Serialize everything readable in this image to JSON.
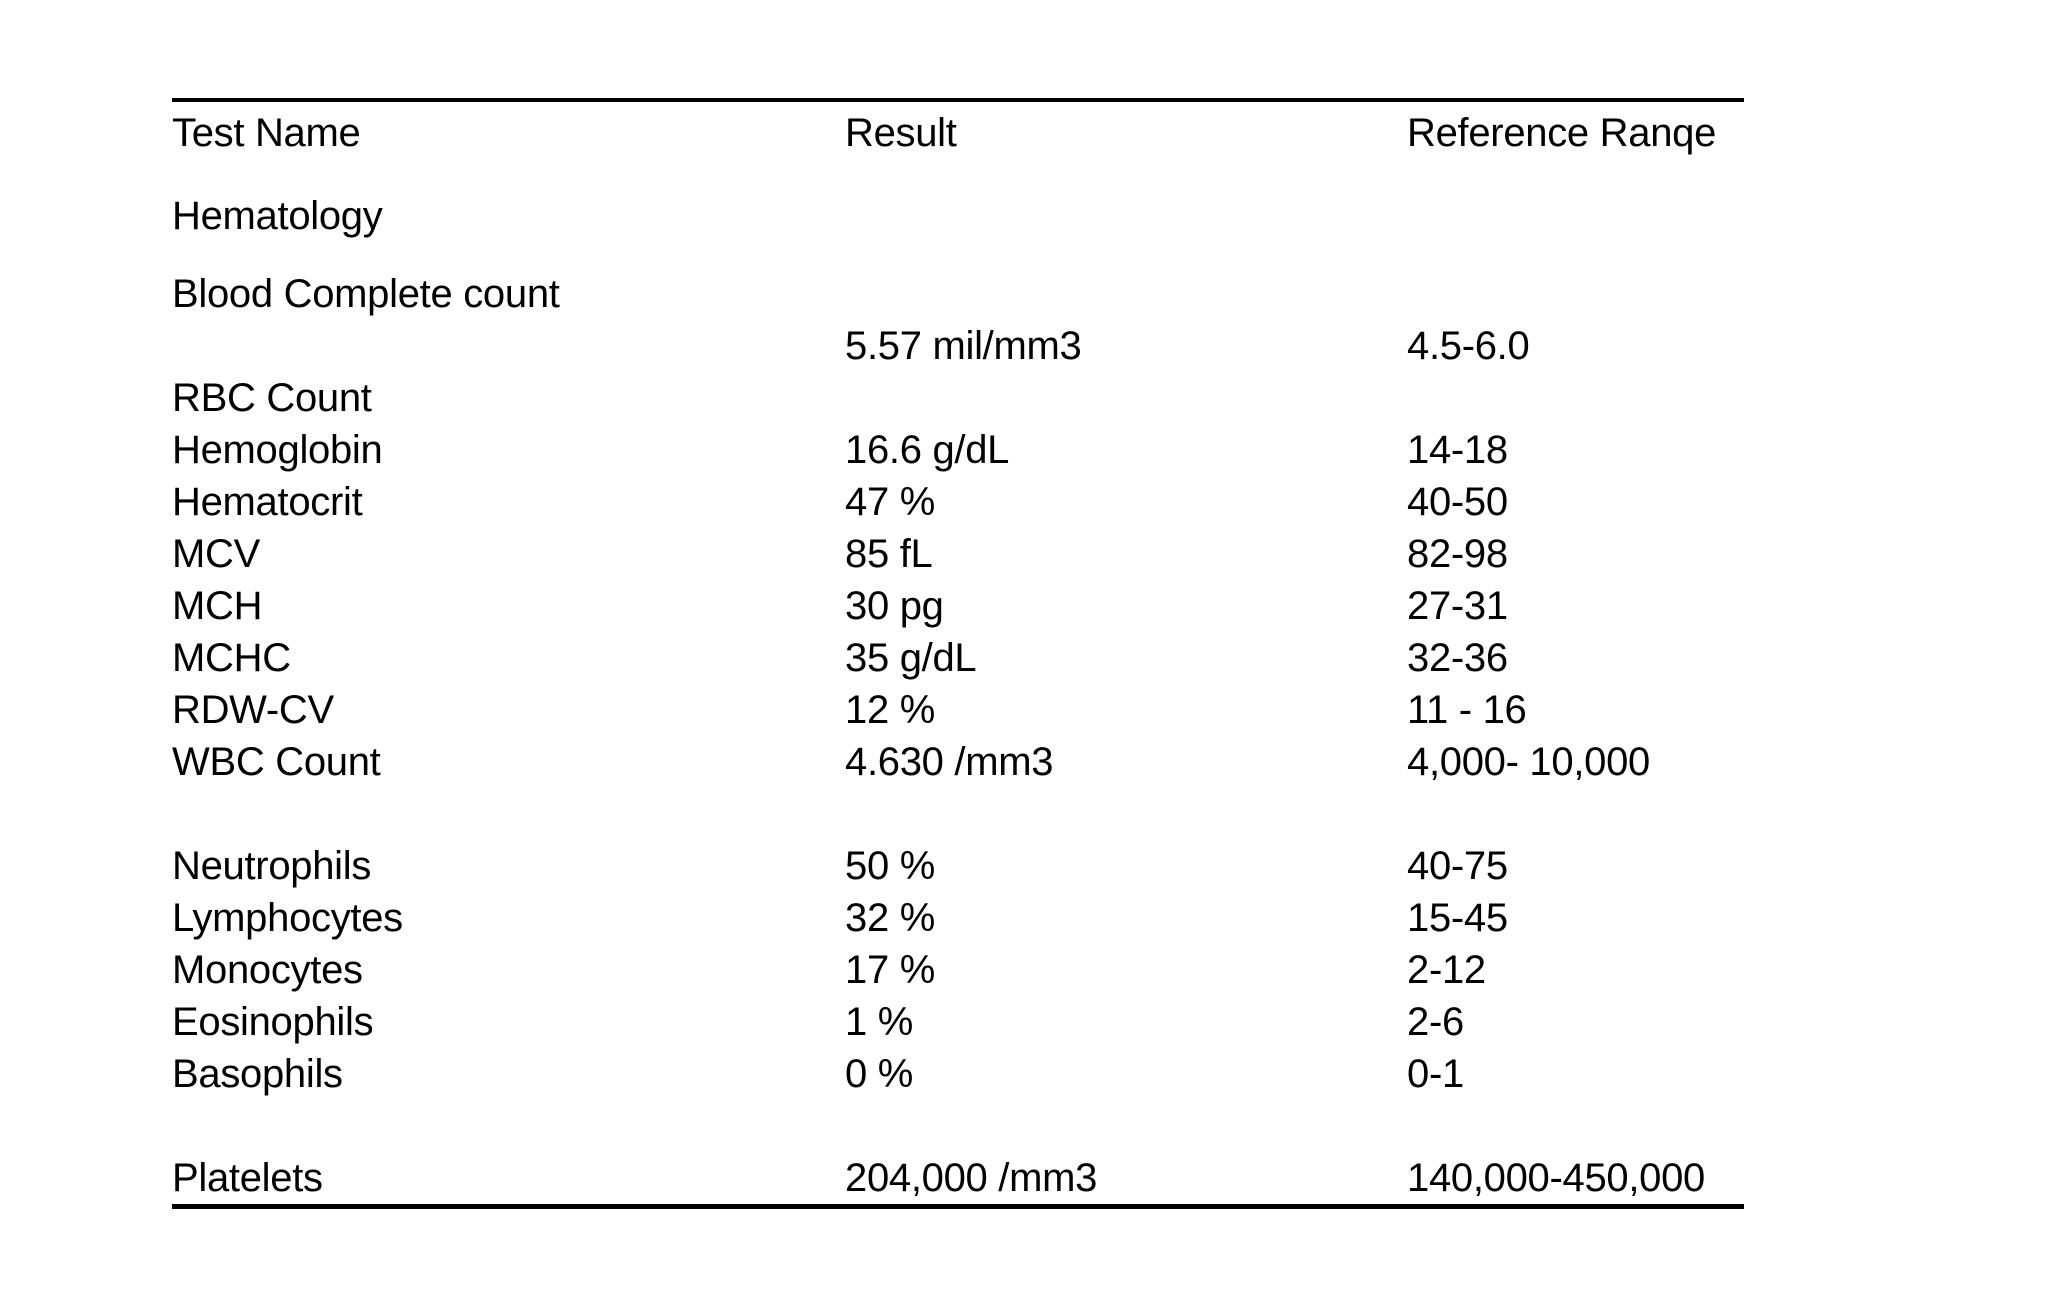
{
  "document": {
    "background_color": "#ffffff",
    "text_color": "#000000",
    "rule_color": "#000000"
  },
  "table": {
    "columns": [
      "Test Name",
      "Result",
      "Reference Ranqe"
    ],
    "section_titles": [
      "Hematology",
      "Blood Complete count"
    ],
    "rows": [
      {
        "type": "group",
        "name": "Hematology",
        "result": "",
        "ref": ""
      },
      {
        "type": "group",
        "name": "Blood Complete count",
        "result": "",
        "ref": ""
      },
      {
        "type": "data",
        "name": "",
        "result": "5.57 mil/mm3",
        "ref": "4.5-6.0"
      },
      {
        "type": "data",
        "name": "RBC Count",
        "result": "",
        "ref": ""
      },
      {
        "type": "data",
        "name": "Hemoglobin",
        "result": "16.6 g/dL",
        "ref": "14-18"
      },
      {
        "type": "data",
        "name": "Hematocrit",
        "result": "47 %",
        "ref": "40-50"
      },
      {
        "type": "data",
        "name": "MCV",
        "result": "85 fL",
        "ref": "82-98"
      },
      {
        "type": "data",
        "name": "MCH",
        "result": "30 pg",
        "ref": "27-31"
      },
      {
        "type": "data",
        "name": "MCHC",
        "result": "35 g/dL",
        "ref": "32-36"
      },
      {
        "type": "data",
        "name": "RDW-CV",
        "result": "12 %",
        "ref": "11 - 16"
      },
      {
        "type": "data",
        "name": "WBC Count",
        "result": "4.630 /mm3",
        "ref": "4,000- 10,000"
      },
      {
        "type": "spacer",
        "name": "",
        "result": "",
        "ref": ""
      },
      {
        "type": "data",
        "name": "Neutrophils",
        "result": "50 %",
        "ref": "40-75"
      },
      {
        "type": "data",
        "name": "Lymphocytes",
        "result": "32 %",
        "ref": "15-45"
      },
      {
        "type": "data",
        "name": "Monocytes",
        "result": "17 %",
        "ref": "2-12"
      },
      {
        "type": "data",
        "name": "Eosinophils",
        "result": "1 %",
        "ref": "2-6"
      },
      {
        "type": "data",
        "name": "Basophils",
        "result": "0 %",
        "ref": "0-1"
      },
      {
        "type": "spacer",
        "name": "",
        "result": "",
        "ref": ""
      },
      {
        "type": "data",
        "name": "Platelets",
        "result": "204,000 /mm3",
        "ref": "140,000-450,000"
      }
    ]
  }
}
